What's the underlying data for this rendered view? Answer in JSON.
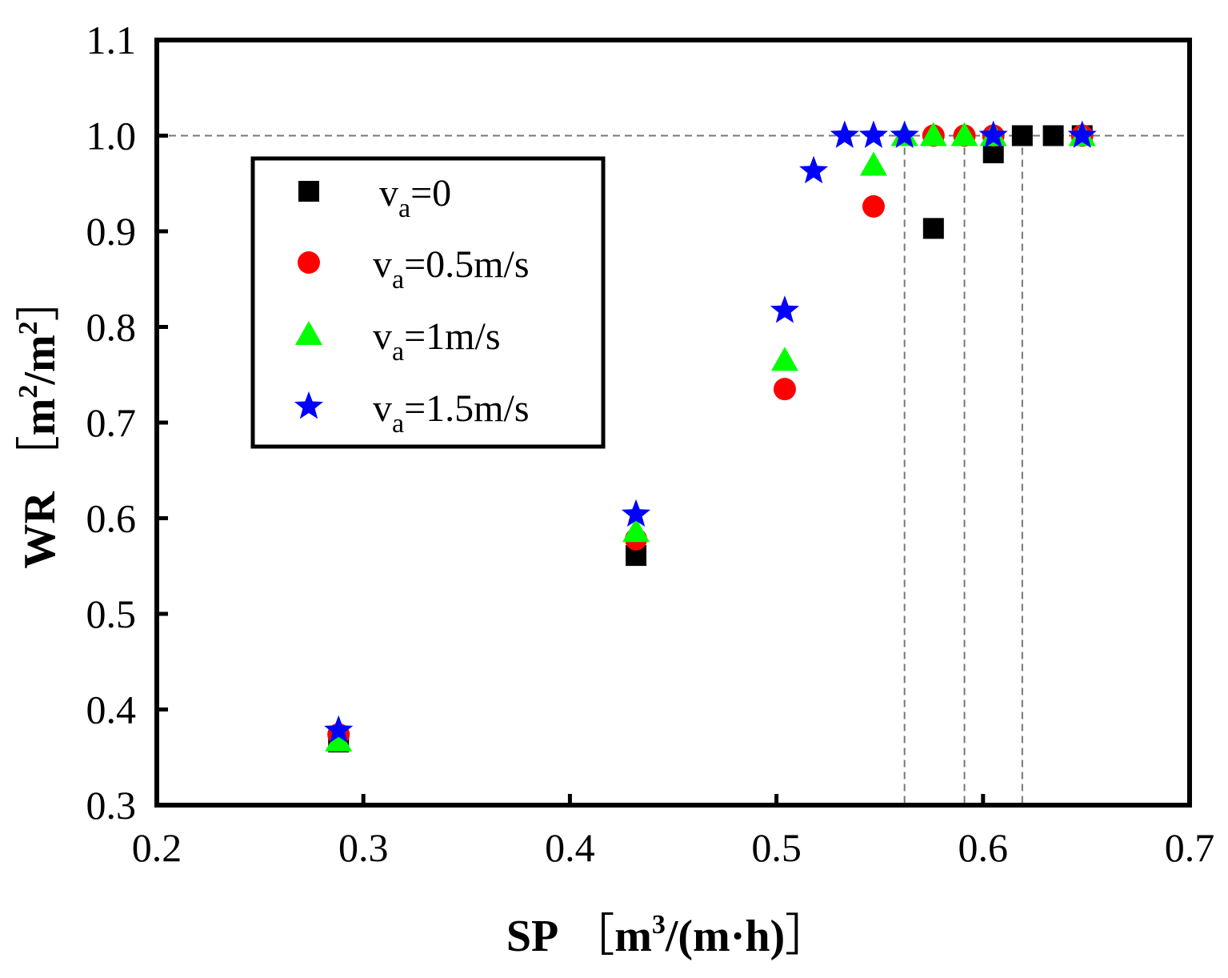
{
  "chart_data": {
    "type": "scatter",
    "title": "",
    "xlabel": {
      "main": "SP",
      "unit_open": "［",
      "unit_a": "m",
      "unit_sup": "3",
      "unit_b": "/(m·h)",
      "unit_close": "］"
    },
    "ylabel": {
      "main": "WR",
      "unit_open": "［",
      "unit_a": "m",
      "sup1": "2",
      "unit_b": "/m",
      "sup2": "2",
      "unit_close": "］"
    },
    "xlim": [
      0.2,
      0.7
    ],
    "ylim": [
      0.3,
      1.1
    ],
    "xticks": [
      "0.2",
      "0.3",
      "0.4",
      "0.5",
      "0.6",
      "0.7"
    ],
    "yticks": [
      "0.3",
      "0.4",
      "0.5",
      "0.6",
      "0.7",
      "0.8",
      "0.9",
      "1.0",
      "1.1"
    ],
    "reference_lines": {
      "horizontal_y": 1.0,
      "vertical_x": [
        0.562,
        0.591,
        0.619
      ]
    },
    "legend_position": "upper-left",
    "series": [
      {
        "name": "va=0",
        "label_main": "v",
        "label_sub": "a",
        "label_rest": "=0",
        "marker": "square",
        "color": "#000000",
        "points": [
          [
            0.288,
            0.366
          ],
          [
            0.432,
            0.561
          ],
          [
            0.576,
            0.903
          ],
          [
            0.605,
            0.982
          ],
          [
            0.619,
            1.0
          ],
          [
            0.634,
            1.0
          ],
          [
            0.648,
            1.0
          ]
        ]
      },
      {
        "name": "va=0.5m/s",
        "label_main": "v",
        "label_sub": "a",
        "label_rest": "=0.5m/s",
        "marker": "circle",
        "color": "#ff0000",
        "points": [
          [
            0.288,
            0.374
          ],
          [
            0.432,
            0.578
          ],
          [
            0.504,
            0.735
          ],
          [
            0.547,
            0.926
          ],
          [
            0.576,
            1.0
          ],
          [
            0.591,
            1.0
          ],
          [
            0.605,
            1.0
          ],
          [
            0.648,
            1.0
          ]
        ]
      },
      {
        "name": "va=1m/s",
        "label_main": "v",
        "label_sub": "a",
        "label_rest": "=1m/s",
        "marker": "triangle",
        "color": "#00ff00",
        "points": [
          [
            0.288,
            0.367
          ],
          [
            0.432,
            0.586
          ],
          [
            0.504,
            0.765
          ],
          [
            0.547,
            0.969
          ],
          [
            0.562,
            1.0
          ],
          [
            0.576,
            1.0
          ],
          [
            0.591,
            1.0
          ],
          [
            0.605,
            1.0
          ],
          [
            0.648,
            1.0
          ]
        ]
      },
      {
        "name": "va=1.5m/s",
        "label_main": "v",
        "label_sub": "a",
        "label_rest": "=1.5m/s",
        "marker": "star",
        "color": "#0000ff",
        "points": [
          [
            0.288,
            0.378
          ],
          [
            0.432,
            0.604
          ],
          [
            0.504,
            0.817
          ],
          [
            0.518,
            0.963
          ],
          [
            0.533,
            1.0
          ],
          [
            0.547,
            1.0
          ],
          [
            0.562,
            1.0
          ],
          [
            0.605,
            1.0
          ],
          [
            0.648,
            1.0
          ]
        ]
      }
    ]
  }
}
